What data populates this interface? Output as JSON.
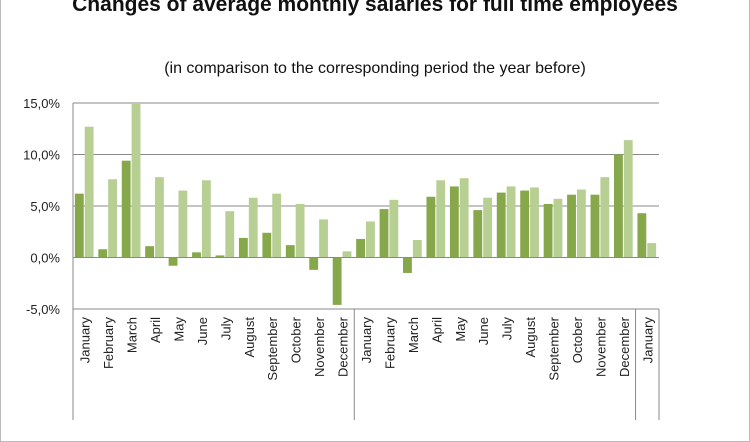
{
  "chart_data": {
    "type": "bar",
    "title": "Changes of average monthly salaries for full time employees",
    "subtitle": "(in comparison to the corresponding period the year before)",
    "xlabel": "",
    "ylabel": "",
    "ylim": [
      -5,
      15
    ],
    "yticks": [
      "-5,0%",
      "0,0%",
      "5,0%",
      "10,0%",
      "15,0%"
    ],
    "ytick_values": [
      -5,
      0,
      5,
      10,
      15
    ],
    "grid": true,
    "categories": [
      "January",
      "February",
      "March",
      "April",
      "May",
      "June",
      "July",
      "August",
      "September",
      "October",
      "November",
      "December",
      "January",
      "February",
      "March",
      "April",
      "May",
      "June",
      "July",
      "August",
      "September",
      "October",
      "November",
      "December",
      "January"
    ],
    "group_sizes": [
      12,
      12,
      1
    ],
    "series": [
      {
        "color": "#86a84a",
        "values": [
          6.2,
          0.8,
          9.4,
          1.1,
          -0.8,
          0.5,
          0.2,
          1.9,
          2.4,
          1.2,
          -1.2,
          -4.6,
          1.8,
          4.7,
          -1.5,
          5.9,
          6.9,
          4.6,
          6.3,
          6.5,
          5.2,
          6.1,
          6.1,
          10.0,
          4.3
        ]
      },
      {
        "color": "#b8cf94",
        "values": [
          12.7,
          7.6,
          15.0,
          7.8,
          6.5,
          7.5,
          4.5,
          5.8,
          6.2,
          5.2,
          3.7,
          0.6,
          3.5,
          5.6,
          1.7,
          7.5,
          7.7,
          5.8,
          6.9,
          6.8,
          5.7,
          6.6,
          7.8,
          11.4,
          1.4
        ]
      }
    ]
  }
}
